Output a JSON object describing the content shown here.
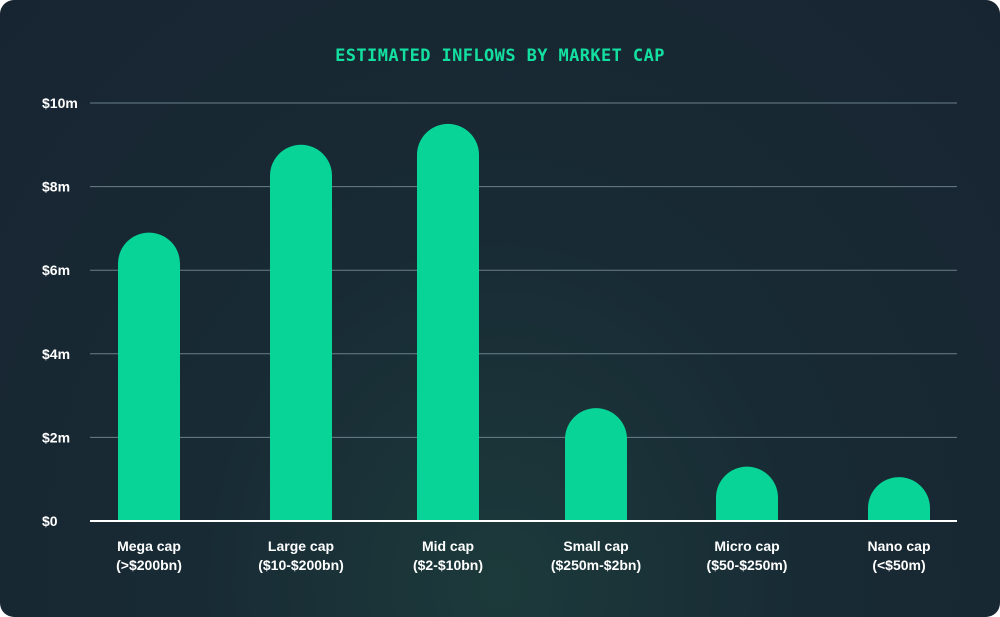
{
  "chart_data": {
    "type": "bar",
    "title": "ESTIMATED INFLOWS BY MARKET CAP",
    "xlabel": "",
    "ylabel": "",
    "categories": [
      [
        "Mega cap",
        "(>$200bn)"
      ],
      [
        "Large cap",
        "($10-$200bn)"
      ],
      [
        "Mid cap",
        "($2-$10bn)"
      ],
      [
        "Small cap",
        "($250m-$2bn)"
      ],
      [
        "Micro cap",
        "($50-$250m)"
      ],
      [
        "Nano cap",
        "(<$50m)"
      ]
    ],
    "values": [
      6.9,
      9.0,
      9.5,
      2.7,
      1.3,
      1.05
    ],
    "unit": "millions USD",
    "ylim": [
      0,
      10
    ],
    "yticks": [
      0,
      2,
      4,
      6,
      8,
      10
    ],
    "ytick_labels": [
      "$0",
      "$2m",
      "$4m",
      "$6m",
      "$8m",
      "$10m"
    ],
    "grid": true,
    "legend": "none"
  },
  "colors": {
    "bar": "#07d496",
    "title": "#13e0a0",
    "gridline": "#6b7f88",
    "baseline": "#ffffff",
    "text": "#ffffff"
  }
}
